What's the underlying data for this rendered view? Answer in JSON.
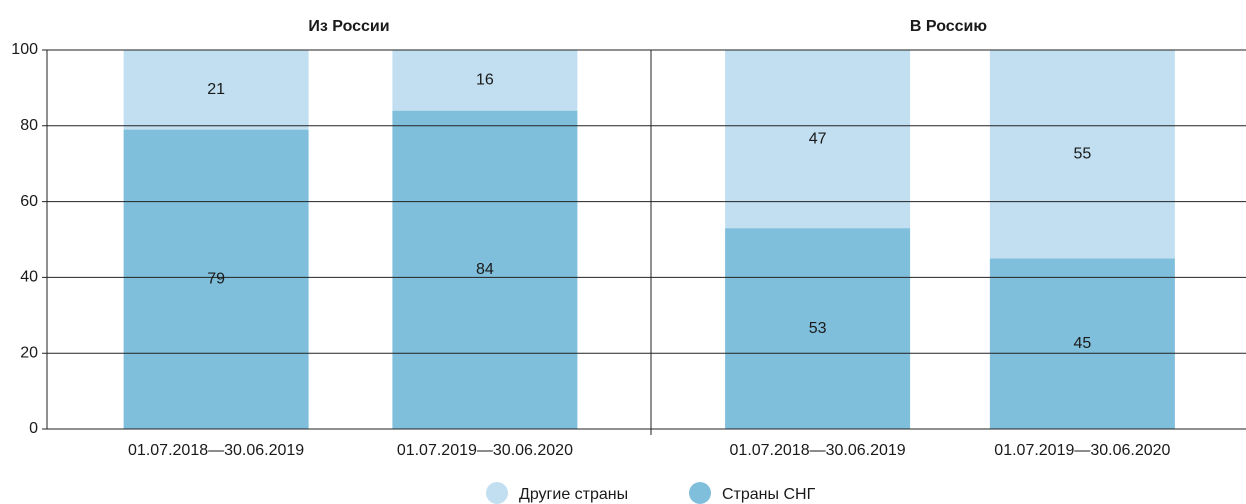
{
  "chart_data": {
    "type": "stacked-bar",
    "panel_titles": [
      "Из России",
      "В Россию"
    ],
    "categories": [
      "01.07.2018—30.06.2019",
      "01.07.2019—30.06.2020",
      "01.07.2018—30.06.2019",
      "01.07.2019—30.06.2020"
    ],
    "series": [
      {
        "name": "Страны СНГ",
        "color": "#80bfdc",
        "values": [
          79,
          84,
          53,
          45
        ]
      },
      {
        "name": "Другие страны",
        "color": "#c1dff0",
        "values": [
          21,
          16,
          47,
          55
        ]
      }
    ],
    "ylim": [
      0,
      100
    ],
    "yticks": [
      0,
      20,
      40,
      60,
      80,
      100
    ],
    "grid": true
  }
}
